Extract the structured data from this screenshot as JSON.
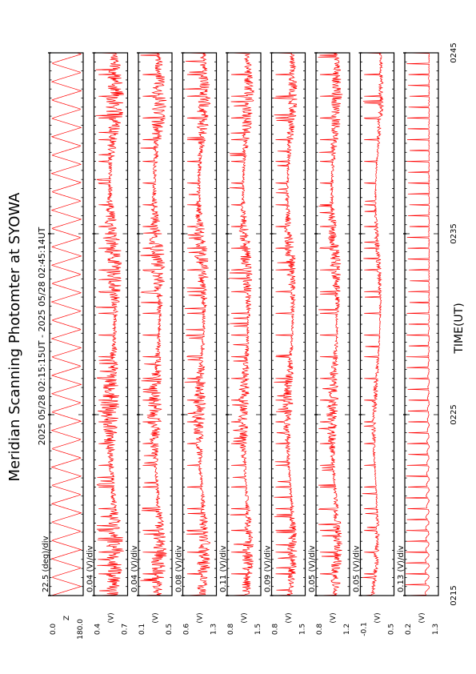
{
  "title": "Meridian Scanning Photomter at SYOWA",
  "time_range": "2025 05/28 02:15:15UT - 2025 05/28 02:45:14UT",
  "colors": {
    "trace": "#ff0000",
    "frame": "#000000",
    "background": "#ffffff"
  },
  "chart_data": {
    "type": "line",
    "orientation": "rotated-90-ccw",
    "xlabel": "TIME(UT)",
    "xticks": [
      "0215",
      "0225",
      "0235",
      "0245"
    ],
    "xlim": [
      "02:15",
      "02:45"
    ],
    "grid": false,
    "panels": [
      {
        "scale": "22.5 (deg)/div",
        "ymax": "180.0",
        "ymid": "Z",
        "ymin": "0.0",
        "signal": "scan",
        "noise": 0.02,
        "spike": 0.0,
        "spacing": 0.0
      },
      {
        "scale": "0.04 (V)/div",
        "ymax": "0.7",
        "ymid": "(V)",
        "ymin": "0.4",
        "signal": "noisy",
        "noise": 0.55,
        "spike": 0.9,
        "spacing": 1.0
      },
      {
        "scale": "0.04 (V)/div",
        "ymax": "0.5",
        "ymid": "(V)",
        "ymin": "0.1",
        "signal": "noisy",
        "noise": 0.45,
        "spike": 0.85,
        "spacing": 0.7
      },
      {
        "scale": "0.08 (V)/div",
        "ymax": "1.3",
        "ymid": "(V)",
        "ymin": "0.6",
        "signal": "noisy",
        "noise": 0.4,
        "spike": 0.85,
        "spacing": 0.7
      },
      {
        "scale": "0.11 (V)/div",
        "ymax": "1.5",
        "ymid": "(V)",
        "ymin": "0.8",
        "signal": "noisy",
        "noise": 0.35,
        "spike": 0.8,
        "spacing": 0.7
      },
      {
        "scale": "0.09 (V)/div",
        "ymax": "1.5",
        "ymid": "(V)",
        "ymin": "0.8",
        "signal": "noisy",
        "noise": 0.3,
        "spike": 0.8,
        "spacing": 0.7
      },
      {
        "scale": "0.05 (V)/div",
        "ymax": "1.2",
        "ymid": "(V)",
        "ymin": "0.8",
        "signal": "noisy",
        "noise": 0.35,
        "spike": 0.8,
        "spacing": 0.7
      },
      {
        "scale": "0.05 (V)/div",
        "ymax": "0.5",
        "ymid": "(V)",
        "ymin": "-0.1",
        "signal": "smooth",
        "noise": 0.15,
        "spike": 0.75,
        "spacing": 0.5
      },
      {
        "scale": "0.13 (V)/div",
        "ymax": "1.3",
        "ymid": "(V)",
        "ymin": "0.2",
        "signal": "spiky",
        "noise": 0.05,
        "spike": 0.9,
        "spacing": 0.7
      }
    ]
  }
}
